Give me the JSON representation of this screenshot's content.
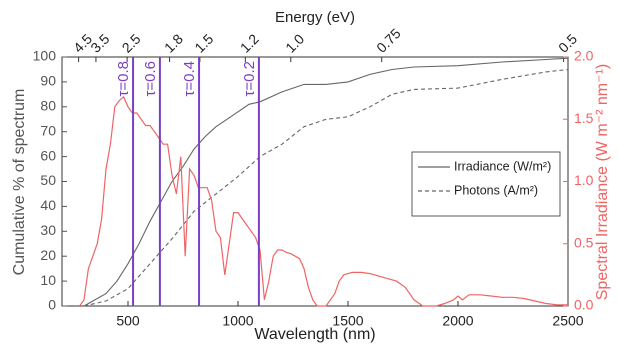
{
  "chart_data": {
    "type": "line",
    "x_label": "Wavelength (nm)",
    "y_label": "Cumulative % of spectrum",
    "y2_label": "Spectral Irradiance (W m⁻² nm⁻¹)",
    "x2_label": "Energy (eV)",
    "xlim": [
      200,
      2500
    ],
    "xticks": [
      500,
      1000,
      1500,
      2000,
      2500
    ],
    "ylim": [
      0,
      100
    ],
    "yticks": [
      0,
      10,
      20,
      30,
      40,
      50,
      60,
      70,
      80,
      90,
      100
    ],
    "y2lim": [
      0,
      2
    ],
    "y2ticks": [
      {
        "value": 0,
        "label": "0.0"
      },
      0.5,
      {
        "value": 1,
        "label": "1.0"
      },
      1.5,
      {
        "value": 2,
        "label": "2.0"
      }
    ],
    "x2ticks": [
      4.5,
      3.5,
      2.5,
      1.8,
      1.5,
      1.2,
      {
        "value": 1,
        "label": "1.0"
      },
      0.75,
      0.5
    ],
    "legend": "right",
    "series": [
      {
        "name": "Irradiance (W/m²)",
        "color": "#666666",
        "dash": false,
        "x": [
          300,
          400,
          450,
          500,
          550,
          600,
          650,
          700,
          750,
          800,
          850,
          900,
          950,
          1000,
          1050,
          1100,
          1200,
          1300,
          1400,
          1500,
          1600,
          1700,
          1800,
          2000,
          2200,
          2400,
          2500
        ],
        "values": [
          0,
          5,
          10,
          17,
          25,
          34,
          42,
          50,
          56,
          63,
          68,
          72,
          75,
          78,
          81,
          82,
          86,
          89,
          89,
          90,
          93,
          95,
          96,
          96.5,
          98,
          99,
          99.5
        ]
      },
      {
        "name": "Photons (A/m²)",
        "color": "#666666",
        "dash": true,
        "x": [
          300,
          400,
          500,
          600,
          700,
          800,
          900,
          1000,
          1100,
          1200,
          1300,
          1400,
          1500,
          1600,
          1700,
          1800,
          2000,
          2200,
          2400,
          2500
        ],
        "values": [
          0,
          2,
          7,
          17,
          27,
          38,
          45,
          52,
          60,
          65,
          72,
          75,
          76,
          80,
          85,
          87,
          87.5,
          91,
          94,
          95
        ]
      },
      {
        "name": "Spectral Irradiance",
        "color": "#f06464",
        "axis": "y2",
        "legend": false,
        "x": [
          280,
          300,
          320,
          340,
          360,
          380,
          400,
          420,
          440,
          460,
          480,
          500,
          520,
          540,
          560,
          580,
          600,
          620,
          640,
          660,
          680,
          700,
          720,
          740,
          760,
          780,
          800,
          820,
          840,
          860,
          880,
          900,
          920,
          940,
          960,
          980,
          1000,
          1020,
          1040,
          1060,
          1080,
          1100,
          1120,
          1140,
          1160,
          1180,
          1200,
          1220,
          1240,
          1260,
          1280,
          1300,
          1320,
          1340,
          1360,
          1380,
          1400,
          1420,
          1440,
          1460,
          1480,
          1500,
          1520,
          1560,
          1600,
          1640,
          1680,
          1720,
          1760,
          1800,
          1840,
          1900,
          1940,
          1980,
          2000,
          2020,
          2050,
          2100,
          2150,
          2200,
          2250,
          2300,
          2350,
          2400,
          2450,
          2500
        ],
        "values": [
          0,
          0.05,
          0.3,
          0.4,
          0.5,
          0.7,
          1.1,
          1.3,
          1.6,
          1.65,
          1.68,
          1.6,
          1.55,
          1.55,
          1.5,
          1.45,
          1.45,
          1.4,
          1.35,
          1.3,
          1.3,
          1.05,
          0.9,
          1.2,
          0.4,
          1.1,
          1.05,
          0.95,
          0.95,
          0.95,
          0.85,
          0.6,
          0.55,
          0.25,
          0.5,
          0.75,
          0.75,
          0.7,
          0.65,
          0.6,
          0.55,
          0.45,
          0.05,
          0.2,
          0.4,
          0.45,
          0.45,
          0.43,
          0.42,
          0.4,
          0.38,
          0.3,
          0.15,
          0.05,
          0,
          0,
          0,
          0.05,
          0.1,
          0.2,
          0.25,
          0.26,
          0.27,
          0.27,
          0.26,
          0.24,
          0.22,
          0.2,
          0.15,
          0.05,
          0,
          0,
          0.02,
          0.05,
          0.08,
          0.05,
          0.09,
          0.09,
          0.08,
          0.07,
          0.07,
          0.06,
          0.04,
          0.02,
          0.01,
          0.01
        ]
      }
    ],
    "markers": [
      {
        "x": 523,
        "label": "τ=0.8"
      },
      {
        "x": 645,
        "label": "τ=0.6"
      },
      {
        "x": 823,
        "label": "τ=0.4"
      },
      {
        "x": 1095,
        "label": "τ=0.2"
      }
    ],
    "marker_color": "#7a3fc4"
  }
}
